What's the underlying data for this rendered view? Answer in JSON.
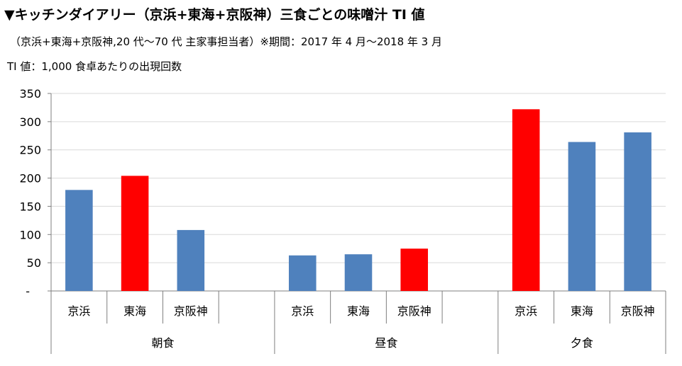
{
  "header": {
    "title": "▼キッチンダイアリー（京浜+東海+京阪神）三食ごとの味噌汁 TI 値",
    "subtitle": "（京浜+東海+京阪神,20 代～70 代 主家事担当者）※期間：2017 年 4 月～2018 年 3 月",
    "note": "TI 値：1,000 食卓あたりの出現回数"
  },
  "colors": {
    "bar_blue": "#4f81bd",
    "bar_red": "#ff0000",
    "grid": "#d9d9d9",
    "axis": "#7f7f7f"
  },
  "chart_data": {
    "type": "bar",
    "ylim": [
      0,
      350
    ],
    "yticks": [
      "-",
      "50",
      "100",
      "150",
      "200",
      "250",
      "300",
      "350"
    ],
    "grid": true,
    "legend": "none",
    "groups": [
      {
        "name": "朝食",
        "bars": [
          {
            "category": "京浜",
            "value": 179,
            "highlight": false
          },
          {
            "category": "東海",
            "value": 204,
            "highlight": true
          },
          {
            "category": "京阪神",
            "value": 108,
            "highlight": false
          }
        ]
      },
      {
        "name": "昼食",
        "bars": [
          {
            "category": "京浜",
            "value": 63,
            "highlight": false
          },
          {
            "category": "東海",
            "value": 65,
            "highlight": false
          },
          {
            "category": "京阪神",
            "value": 75,
            "highlight": true
          }
        ]
      },
      {
        "name": "夕食",
        "bars": [
          {
            "category": "京浜",
            "value": 322,
            "highlight": true
          },
          {
            "category": "東海",
            "value": 264,
            "highlight": false
          },
          {
            "category": "京阪神",
            "value": 281,
            "highlight": false
          }
        ]
      }
    ]
  }
}
